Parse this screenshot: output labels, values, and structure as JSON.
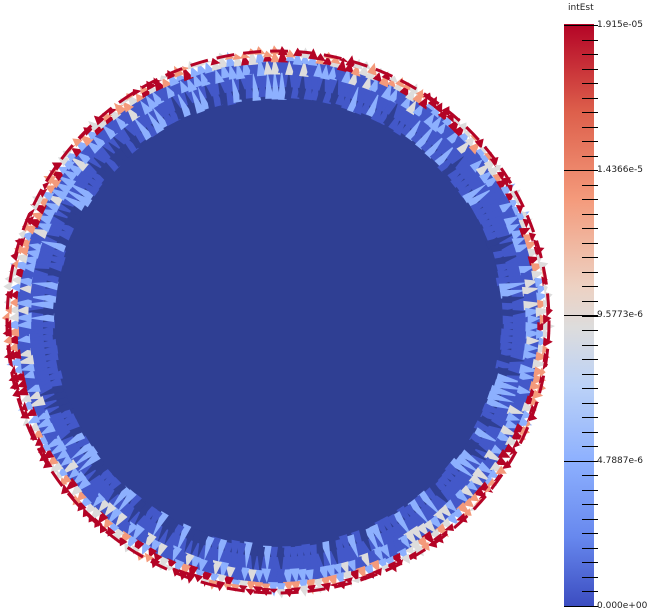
{
  "colorbar": {
    "title": "intEst",
    "labels": {
      "max": "1.915e-05",
      "l3": "1.4366e-5",
      "l2": "9.5773e-6",
      "l1": "4.7887e-6",
      "min": "0.000e+00"
    }
  },
  "colors": {
    "interior": "#2f3f93",
    "inner_ring": "#4358c9",
    "light_blue": "#8db0fe",
    "neutral": "#dddcdc",
    "salmon": "#f49a7b",
    "dark_red": "#b40426"
  }
}
